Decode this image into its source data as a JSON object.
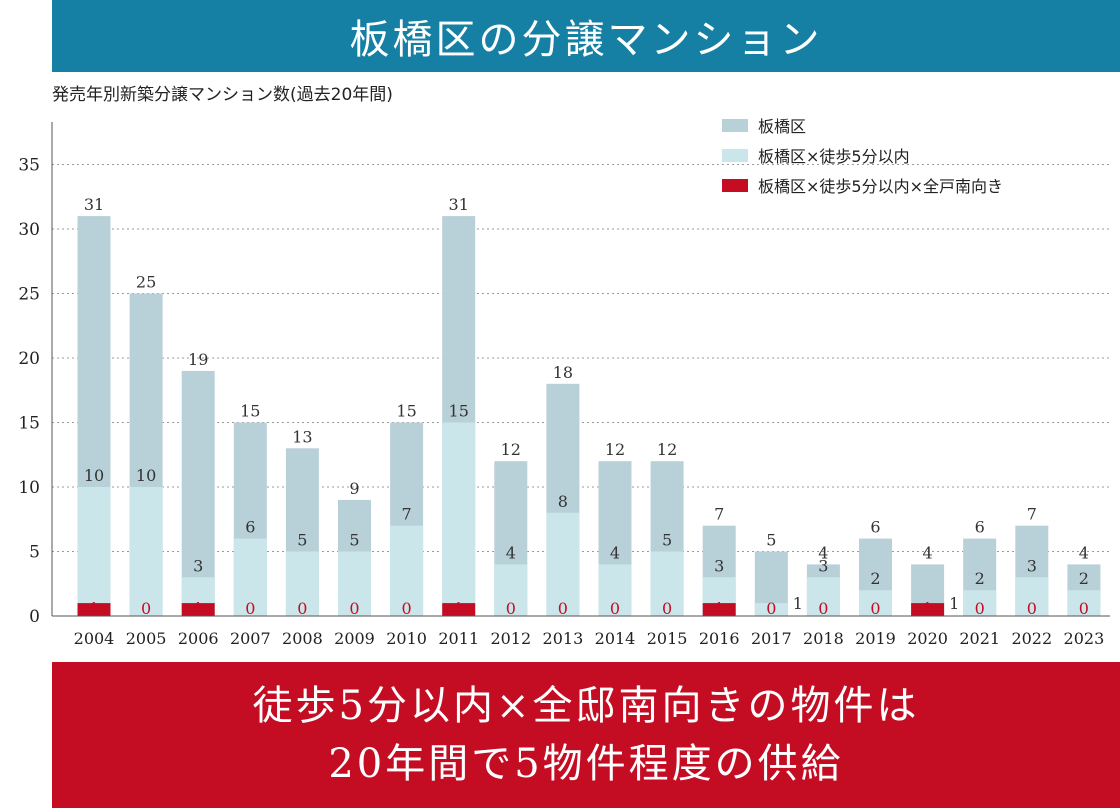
{
  "header": {
    "title": "板橋区の分譲マンション"
  },
  "chart_data": {
    "type": "bar",
    "subtitle": "発売年別新築分譲マンション数(過去20年間)",
    "categories": [
      "2004",
      "2005",
      "2006",
      "2007",
      "2008",
      "2009",
      "2010",
      "2011",
      "2012",
      "2013",
      "2014",
      "2015",
      "2016",
      "2017",
      "2018",
      "2019",
      "2020",
      "2021",
      "2022",
      "2023"
    ],
    "series": [
      {
        "name": "板橋区",
        "color": "#b8d0d8",
        "values": [
          31,
          25,
          19,
          15,
          13,
          9,
          15,
          31,
          12,
          18,
          12,
          12,
          7,
          5,
          4,
          6,
          4,
          6,
          7,
          4
        ]
      },
      {
        "name": "板橋区×徒歩5分以内",
        "color": "#cbe6ea",
        "values": [
          10,
          10,
          3,
          6,
          5,
          5,
          7,
          15,
          4,
          8,
          4,
          5,
          3,
          1,
          3,
          2,
          1,
          2,
          3,
          2
        ]
      },
      {
        "name": "板橋区×徒歩5分以内×全戸南向き",
        "color": "#c40d23",
        "values": [
          1,
          0,
          1,
          0,
          0,
          0,
          0,
          1,
          0,
          0,
          0,
          0,
          1,
          0,
          0,
          0,
          1,
          0,
          0,
          0
        ]
      }
    ],
    "ylim": [
      0,
      37
    ],
    "yticks": [
      0,
      5,
      10,
      15,
      20,
      25,
      30,
      35
    ],
    "grid": true,
    "legend_position": "top-right"
  },
  "footer": {
    "line1": "徒歩5分以内×全邸南向きの物件は",
    "line2": "20年間で5物件程度の供給"
  }
}
